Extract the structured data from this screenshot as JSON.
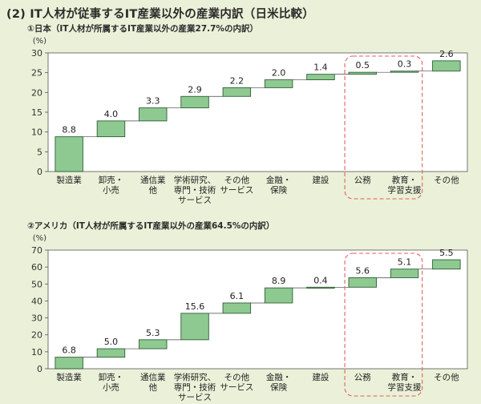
{
  "page_title": "(2) IT人材が従事するIT産業以外の産業内訳（日米比較）",
  "colors": {
    "background": "#eaf1d8",
    "plot_bg": "#ffffff",
    "bar_fill": "#8fc992",
    "bar_stroke": "#2e5e34",
    "highlight_box": "#e0615a"
  },
  "chart_data": [
    {
      "type": "bar",
      "subtype": "waterfall",
      "title": "①日本（IT人材が所属するIT産業以外の産業27.7%の内訳）",
      "ylabel": "(%)",
      "ylim": [
        0,
        30
      ],
      "yticks": [
        0,
        5,
        10,
        15,
        20,
        25,
        30
      ],
      "categories": [
        "製造業",
        "卸売・\n小売",
        "通信業\n他",
        "学術研究、\n専門・技術\nサービス",
        "その他\nサービス",
        "金融・\n保険",
        "建設",
        "公務",
        "教育・\n学習支援",
        "その他"
      ],
      "values": [
        8.8,
        4.0,
        3.3,
        2.9,
        2.2,
        2.0,
        1.4,
        0.5,
        0.3,
        2.6
      ],
      "data_labels": [
        "8.8",
        "4.0",
        "3.3",
        "2.9",
        "2.2",
        "2.0",
        "1.4",
        "0.5",
        "0.3",
        "2.6"
      ],
      "highlighted": [
        "公務",
        "教育・\n学習支援"
      ],
      "grid": false
    },
    {
      "type": "bar",
      "subtype": "waterfall",
      "title": "②アメリカ（IT人材が所属するIT産業以外の産業64.5%の内訳）",
      "ylabel": "(%)",
      "ylim": [
        0,
        70
      ],
      "yticks": [
        0,
        10,
        20,
        30,
        40,
        50,
        60,
        70
      ],
      "categories": [
        "製造業",
        "卸売・\n小売",
        "通信業\n他",
        "学術研究、\n専門・技術\nサービス",
        "その他\nサービス",
        "金融・\n保険",
        "建設",
        "公務",
        "教育・\n学習支援",
        "その他"
      ],
      "values": [
        6.8,
        5.0,
        5.3,
        15.6,
        6.1,
        8.9,
        0.4,
        5.6,
        5.1,
        5.5
      ],
      "data_labels": [
        "6.8",
        "5.0",
        "5.3",
        "15.6",
        "6.1",
        "8.9",
        "0.4",
        "5.6",
        "5.1",
        "5.5"
      ],
      "highlighted": [
        "公務",
        "教育・\n学習支援"
      ],
      "grid": false
    }
  ]
}
